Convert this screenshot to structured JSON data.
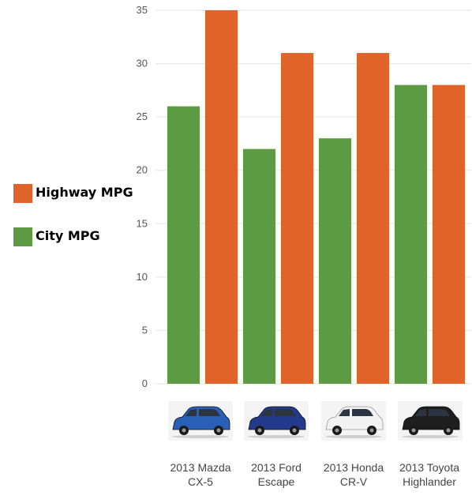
{
  "chart_data": {
    "type": "bar",
    "categories": [
      "2013 Mazda CX-5",
      "2013 Ford Escape",
      "2013 Honda CR-V",
      "2013 Toyota Highlander"
    ],
    "category_lines": [
      [
        "2013 Mazda",
        "CX-5"
      ],
      [
        "2013 Ford",
        "Escape"
      ],
      [
        "2013 Honda",
        "CR-V"
      ],
      [
        "2013 Toyota",
        "Highlander"
      ]
    ],
    "series": [
      {
        "name": "City MPG",
        "values": [
          26,
          22,
          23,
          28
        ],
        "color": "#5c9a44"
      },
      {
        "name": "Highway MPG",
        "values": [
          35,
          31,
          31,
          28
        ],
        "color": "#e0632a"
      }
    ],
    "ylim": [
      0,
      35
    ],
    "yticks": [
      0,
      5,
      10,
      15,
      20,
      25,
      30,
      35
    ],
    "grid": true,
    "legend": [
      {
        "label": "Highway MPG",
        "color": "#e0632a"
      },
      {
        "label": "City MPG",
        "color": "#5c9a44"
      }
    ],
    "legend_position": "left",
    "car_images": [
      {
        "icon": "blue-suv-icon",
        "color": "#2a5fb8"
      },
      {
        "icon": "navy-suv-icon",
        "color": "#233a8c"
      },
      {
        "icon": "white-suv-icon",
        "color": "#f2f2f2"
      },
      {
        "icon": "black-suv-icon",
        "color": "#1e1e1e"
      }
    ]
  }
}
